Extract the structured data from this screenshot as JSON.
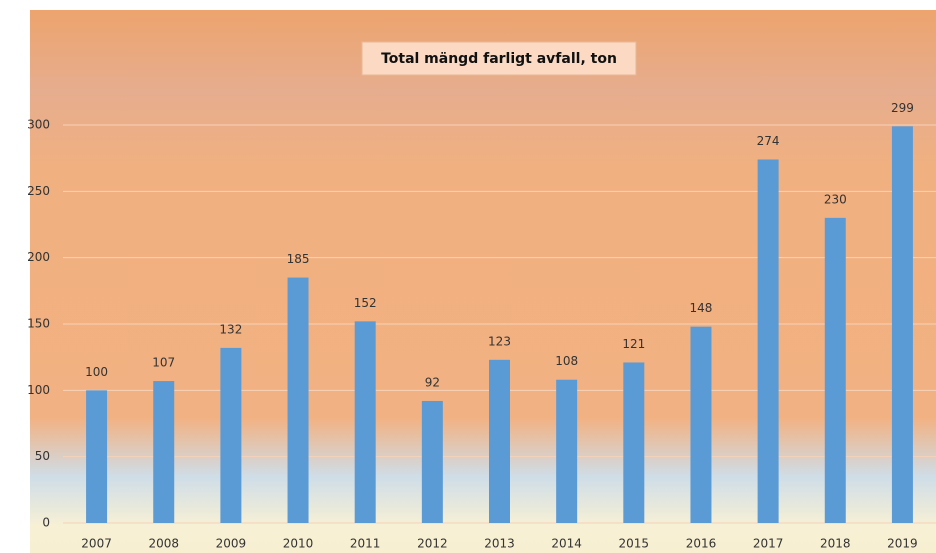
{
  "chart_data": {
    "type": "bar",
    "title": "Total mängd farligt avfall, ton",
    "categories": [
      "2007",
      "2008",
      "2009",
      "2010",
      "2011",
      "2012",
      "2013",
      "2014",
      "2015",
      "2016",
      "2017",
      "2018",
      "2019"
    ],
    "values": [
      100,
      107,
      132,
      185,
      152,
      92,
      123,
      108,
      121,
      148,
      274,
      230,
      299
    ],
    "color": "#5b9bd5",
    "ylim": [
      0,
      300
    ],
    "yticks": [
      0,
      50,
      100,
      150,
      200,
      250,
      300
    ],
    "grid": true
  }
}
